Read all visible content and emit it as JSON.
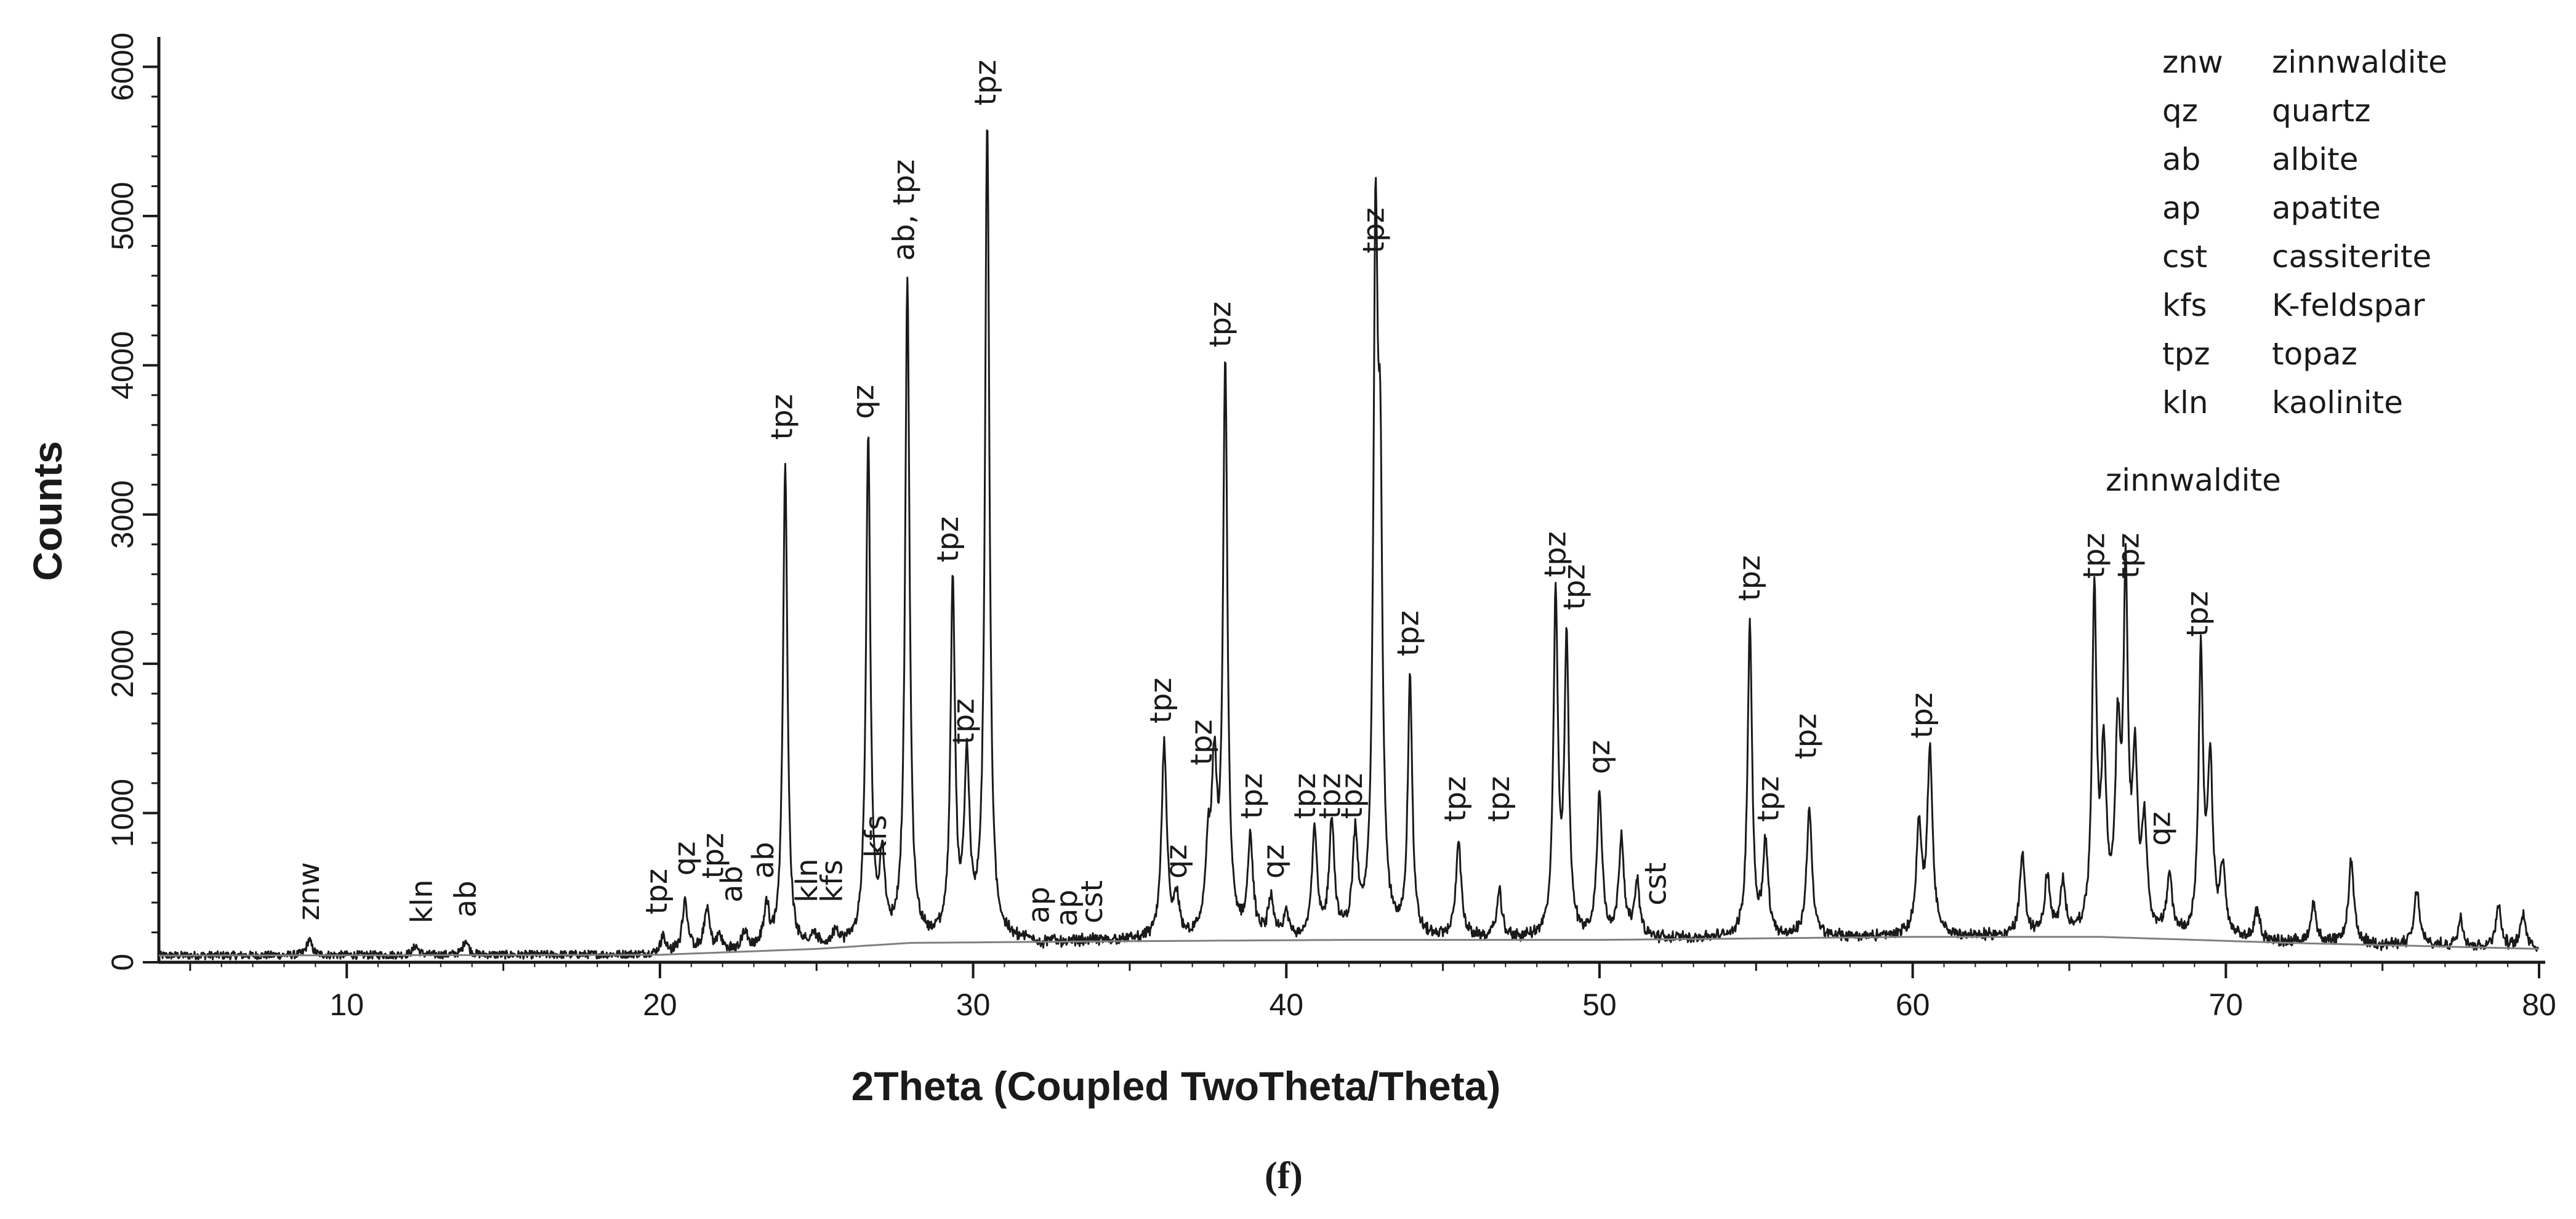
{
  "panel_label": "(f)",
  "chart_data": {
    "type": "line",
    "xlabel": "2Theta (Coupled TwoTheta/Theta)",
    "ylabel": "Counts",
    "xlim": [
      4,
      80
    ],
    "ylim": [
      0,
      6200
    ],
    "x_ticks": [
      10,
      20,
      30,
      40,
      50,
      60,
      70,
      80
    ],
    "y_ticks": [
      0,
      1000,
      2000,
      3000,
      4000,
      5000,
      6000
    ],
    "series": [
      {
        "peaks": [
          [
            8.8,
            150
          ],
          [
            12.2,
            110
          ],
          [
            13.8,
            150
          ],
          [
            20.1,
            170
          ],
          [
            20.8,
            420
          ],
          [
            21.5,
            360
          ],
          [
            21.9,
            160
          ],
          [
            22.7,
            190
          ],
          [
            23.4,
            350
          ],
          [
            24.0,
            3320
          ],
          [
            24.9,
            160
          ],
          [
            25.6,
            190
          ],
          [
            26.65,
            3470
          ],
          [
            27.1,
            640
          ],
          [
            27.9,
            4520
          ],
          [
            29.35,
            2510
          ],
          [
            29.8,
            1300
          ],
          [
            30.45,
            5600
          ],
          [
            32.2,
            110
          ],
          [
            33.0,
            110
          ],
          [
            33.7,
            140
          ],
          [
            36.1,
            1440
          ],
          [
            36.5,
            380
          ],
          [
            37.5,
            650
          ],
          [
            37.7,
            1180
          ],
          [
            38.05,
            3950
          ],
          [
            38.85,
            800
          ],
          [
            39.5,
            400
          ],
          [
            40.0,
            300
          ],
          [
            40.9,
            850
          ],
          [
            41.45,
            920
          ],
          [
            42.2,
            790
          ],
          [
            42.85,
            4600
          ],
          [
            43.0,
            2750
          ],
          [
            43.95,
            1880
          ],
          [
            45.5,
            800
          ],
          [
            46.8,
            460
          ],
          [
            48.6,
            2400
          ],
          [
            48.95,
            2120
          ],
          [
            50.0,
            1100
          ],
          [
            50.7,
            820
          ],
          [
            51.2,
            520
          ],
          [
            54.8,
            2270
          ],
          [
            55.3,
            770
          ],
          [
            56.7,
            1030
          ],
          [
            60.2,
            900
          ],
          [
            60.55,
            1380
          ],
          [
            63.5,
            700
          ],
          [
            64.3,
            560
          ],
          [
            64.8,
            500
          ],
          [
            65.8,
            2420
          ],
          [
            66.1,
            1300
          ],
          [
            66.55,
            1400
          ],
          [
            66.8,
            2440
          ],
          [
            67.1,
            1240
          ],
          [
            67.4,
            850
          ],
          [
            68.2,
            550
          ],
          [
            69.2,
            2010
          ],
          [
            69.5,
            1280
          ],
          [
            69.9,
            600
          ],
          [
            71.0,
            340
          ],
          [
            72.8,
            390
          ],
          [
            74.0,
            680
          ],
          [
            76.1,
            480
          ],
          [
            77.5,
            300
          ],
          [
            78.7,
            380
          ],
          [
            79.5,
            330
          ]
        ]
      }
    ],
    "background_curve": [
      [
        4,
        45
      ],
      [
        20,
        50
      ],
      [
        25,
        90
      ],
      [
        28,
        130
      ],
      [
        34,
        140
      ],
      [
        42,
        150
      ],
      [
        50,
        150
      ],
      [
        60,
        170
      ],
      [
        66,
        170
      ],
      [
        72,
        130
      ],
      [
        80,
        90
      ]
    ],
    "peak_labels": [
      {
        "text": "znw",
        "x": 8.8,
        "y": 280
      },
      {
        "text": "kln",
        "x": 12.4,
        "y": 260
      },
      {
        "text": "ab",
        "x": 13.8,
        "y": 300
      },
      {
        "text": "tpz",
        "x": 19.9,
        "y": 320
      },
      {
        "text": "qz",
        "x": 20.8,
        "y": 580
      },
      {
        "text": "tpz",
        "x": 21.7,
        "y": 560
      },
      {
        "text": "ab",
        "x": 22.3,
        "y": 400
      },
      {
        "text": "ab",
        "x": 23.3,
        "y": 560
      },
      {
        "text": "tpz",
        "x": 23.9,
        "y": 3500
      },
      {
        "text": "kln",
        "x": 24.7,
        "y": 400
      },
      {
        "text": "kfs",
        "x": 25.5,
        "y": 400
      },
      {
        "text": "qz",
        "x": 26.5,
        "y": 3640
      },
      {
        "text": "kfs",
        "x": 26.9,
        "y": 700
      },
      {
        "text": "ab, tpz",
        "x": 27.8,
        "y": 4700
      },
      {
        "text": "tpz",
        "x": 29.2,
        "y": 2680
      },
      {
        "text": "tpz",
        "x": 29.7,
        "y": 1460
      },
      {
        "text": "tpz",
        "x": 30.4,
        "y": 5740
      },
      {
        "text": "ap",
        "x": 32.1,
        "y": 260
      },
      {
        "text": "ap",
        "x": 33.0,
        "y": 240
      },
      {
        "text": "cst",
        "x": 33.8,
        "y": 260
      },
      {
        "text": "tpz",
        "x": 36.0,
        "y": 1600
      },
      {
        "text": "qz",
        "x": 36.5,
        "y": 560
      },
      {
        "text": "tpz",
        "x": 37.3,
        "y": 1320
      },
      {
        "text": "tpz",
        "x": 37.9,
        "y": 4120
      },
      {
        "text": "tpz",
        "x": 38.9,
        "y": 960
      },
      {
        "text": "qz",
        "x": 39.6,
        "y": 560
      },
      {
        "text": "tpz",
        "x": 40.6,
        "y": 960
      },
      {
        "text": "tpz",
        "x": 41.4,
        "y": 960
      },
      {
        "text": "tpz",
        "x": 42.1,
        "y": 960
      },
      {
        "text": "tpz",
        "x": 42.8,
        "y": 4750
      },
      {
        "text": "tpz",
        "x": 43.9,
        "y": 2050
      },
      {
        "text": "tpz",
        "x": 45.4,
        "y": 940
      },
      {
        "text": "tpz",
        "x": 46.8,
        "y": 940
      },
      {
        "text": "tpz",
        "x": 48.6,
        "y": 2580
      },
      {
        "text": "tpz",
        "x": 49.2,
        "y": 2360
      },
      {
        "text": "qz",
        "x": 50.0,
        "y": 1260
      },
      {
        "text": "cst",
        "x": 51.8,
        "y": 380
      },
      {
        "text": "tpz",
        "x": 54.8,
        "y": 2420
      },
      {
        "text": "tpz",
        "x": 55.4,
        "y": 940
      },
      {
        "text": "tpz",
        "x": 56.6,
        "y": 1360
      },
      {
        "text": "tpz",
        "x": 60.3,
        "y": 1500
      },
      {
        "text": "tpz",
        "x": 65.8,
        "y": 2570
      },
      {
        "text": "tpz",
        "x": 66.9,
        "y": 2570
      },
      {
        "text": "qz",
        "x": 67.9,
        "y": 780
      },
      {
        "text": "tpz",
        "x": 69.1,
        "y": 2180
      }
    ],
    "legend": [
      {
        "abbr": "znw",
        "name": "zinnwaldite"
      },
      {
        "abbr": "qz",
        "name": "quartz"
      },
      {
        "abbr": "ab",
        "name": "albite"
      },
      {
        "abbr": "ap",
        "name": "apatite"
      },
      {
        "abbr": "cst",
        "name": "cassiterite"
      },
      {
        "abbr": "kfs",
        "name": "K-feldspar"
      },
      {
        "abbr": "tpz",
        "name": "topaz"
      },
      {
        "abbr": "kln",
        "name": "kaolinite"
      }
    ],
    "annotation": "zinnwaldite",
    "grid": false,
    "legend_position": "top-right",
    "colors": {
      "line": "#1a1a1a",
      "background_curve": "#808080",
      "axis": "#1a1a1a"
    }
  }
}
